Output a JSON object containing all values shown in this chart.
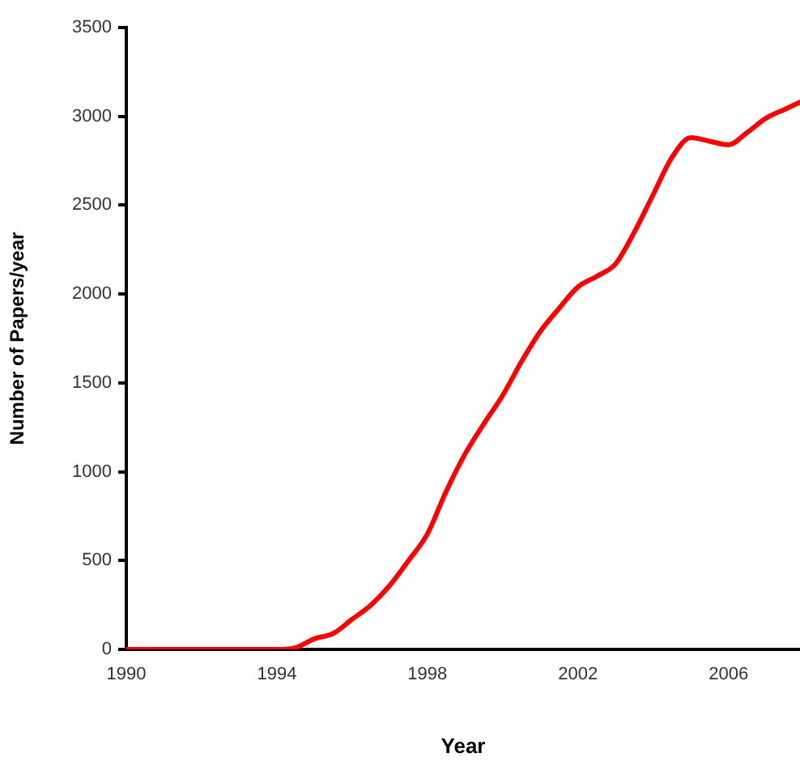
{
  "chart_data": {
    "type": "line",
    "xlabel": "Year",
    "ylabel": "Number of Papers/year",
    "x": [
      1990,
      1991,
      1992,
      1993,
      1994,
      1994.5,
      1995,
      1995.5,
      1996,
      1996.5,
      1997,
      1997.5,
      1998,
      1998.5,
      1999,
      1999.5,
      2000,
      2000.5,
      2001,
      2001.5,
      2002,
      2002.5,
      2003,
      2003.5,
      2004,
      2004.5,
      2005,
      2005.5,
      2006,
      2006.5,
      2007,
      2007.5,
      2007.9
    ],
    "series": [
      {
        "color": "#ff0000",
        "values": [
          0,
          0,
          0,
          0,
          0,
          10,
          60,
          90,
          170,
          250,
          360,
          500,
          650,
          890,
          1100,
          1270,
          1430,
          1620,
          1790,
          1920,
          2040,
          2100,
          2170,
          2350,
          2560,
          2770,
          2880,
          2860,
          2840,
          2910,
          2990,
          3040,
          3080
        ]
      }
    ],
    "xlim": [
      1990,
      2007.9
    ],
    "xticks": [
      1990,
      1994,
      1998,
      2002,
      2006
    ],
    "ylim": [
      0,
      3500
    ],
    "yticks": [
      0,
      500,
      1000,
      1500,
      2000,
      2500,
      3000,
      3500
    ],
    "marker": "none",
    "line_style": "solid"
  }
}
